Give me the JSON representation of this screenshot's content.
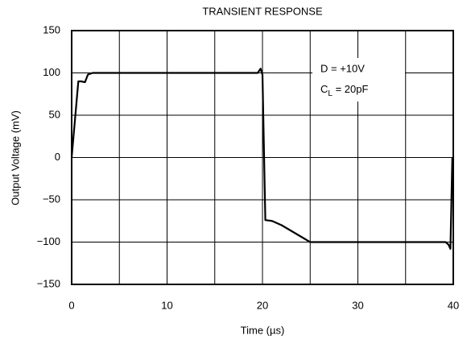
{
  "chart_data": {
    "type": "line",
    "title": "TRANSIENT RESPONSE",
    "xlabel": "Time (µs)",
    "ylabel": "Output Voltage (mV)",
    "x": [
      0,
      0.7,
      1.0,
      1.4,
      1.7,
      2.2,
      19.5,
      19.8,
      20.0,
      20.3,
      21.0,
      22.0,
      25.0,
      39.2,
      39.5,
      39.7,
      39.9
    ],
    "series": [
      {
        "color": "#000000",
        "values": [
          0,
          90,
          90,
          89,
          98,
          100,
          100,
          105,
          98,
          -74,
          -75,
          -80,
          -100,
          -100,
          -103,
          -108,
          0
        ]
      }
    ],
    "xlim": [
      0,
      40
    ],
    "xticks": [
      0,
      10,
      20,
      30,
      40
    ],
    "minor_xticks": [
      5,
      15,
      25,
      35
    ],
    "ylim": [
      -150,
      150
    ],
    "yticks": [
      {
        "value": -150,
        "label": "−150"
      },
      {
        "value": -100,
        "label": "−100"
      },
      {
        "value": -50,
        "label": "−50"
      },
      0,
      50,
      100,
      150
    ],
    "grid": true,
    "annotation": {
      "line1": "D = +10V",
      "line2": {
        "main": "C",
        "sub": "L",
        "rest": " = 20pF"
      }
    }
  }
}
